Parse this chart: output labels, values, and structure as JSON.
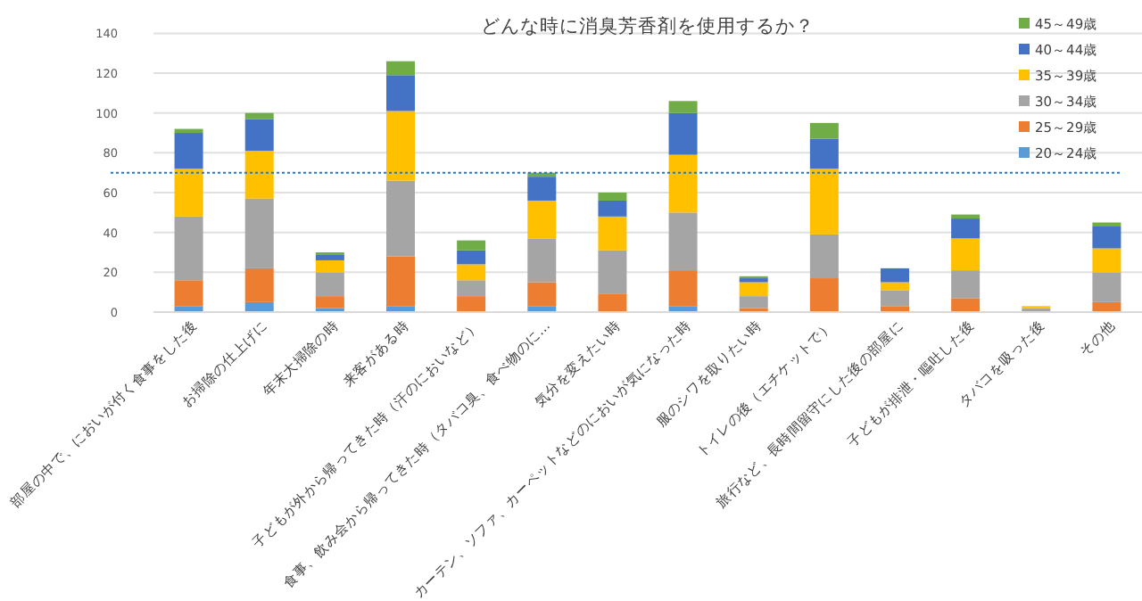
{
  "chart_data": {
    "type": "bar",
    "stacked": true,
    "title": "どんな時に消臭芳香剤を使用するか？",
    "categories": [
      "部屋の中で、においが付く食事をした後",
      "お掃除の仕上げに",
      "年末大掃除の時",
      "来客がある時",
      "子どもが外から帰ってきた時（汗のにおいなど）",
      "食事、飲み会から帰ってきた時（タバコ臭、食べ物のに…",
      "気分を変えたい時",
      "カーテン、ソファ、カーペットなどのにおいが気になった時",
      "服のシワを取りたい時",
      "トイレの後（エチケットで）",
      "旅行など、長時間留守にした後の部屋に",
      "子どもが排泄・嘔吐した後",
      "タバコを吸った後",
      "その他"
    ],
    "series": [
      {
        "name": "20～24歳",
        "color": "#5b9bd5",
        "values": [
          3,
          5,
          2,
          3,
          0,
          3,
          0,
          3,
          0,
          null,
          0,
          null,
          0,
          0
        ]
      },
      {
        "name": "25～29歳",
        "color": "#ed7d31",
        "values": [
          13,
          17,
          6,
          25,
          8,
          12,
          9,
          18,
          2,
          17,
          3,
          7,
          0,
          5
        ]
      },
      {
        "name": "30～34歳",
        "color": "#a5a5a5",
        "values": [
          32,
          35,
          12,
          38,
          8,
          22,
          22,
          29,
          6,
          22,
          8,
          14,
          2,
          15
        ]
      },
      {
        "name": "35～39歳",
        "color": "#ffc000",
        "values": [
          24,
          24,
          6,
          35,
          8,
          19,
          17,
          29,
          7,
          33,
          4,
          16,
          1,
          12
        ]
      },
      {
        "name": "40～44歳",
        "color": "#4472c4",
        "values": [
          18,
          16,
          3,
          18,
          7,
          12,
          8,
          21,
          2,
          15,
          7,
          10,
          0,
          11
        ]
      },
      {
        "name": "45～49歳",
        "color": "#70ad47",
        "values": [
          2,
          3,
          1,
          7,
          5,
          2,
          4,
          6,
          1,
          8,
          0,
          2,
          0,
          2
        ]
      }
    ],
    "ylim": [
      0,
      140
    ],
    "yticks": [
      0,
      20,
      40,
      60,
      80,
      100,
      120,
      140
    ],
    "grid": "y",
    "legend": "top right",
    "ref_lines": [
      {
        "axis": "y",
        "value": 70,
        "color": "#2e75b6",
        "line_style": "dotted"
      }
    ]
  }
}
